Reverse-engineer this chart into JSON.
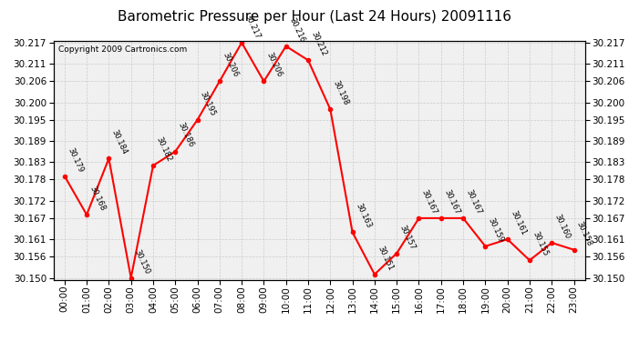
{
  "title": "Barometric Pressure per Hour (Last 24 Hours) 20091116",
  "copyright": "Copyright 2009 Cartronics.com",
  "hours": [
    "00:00",
    "01:00",
    "02:00",
    "03:00",
    "04:00",
    "05:00",
    "06:00",
    "07:00",
    "08:00",
    "09:00",
    "10:00",
    "11:00",
    "12:00",
    "13:00",
    "14:00",
    "15:00",
    "16:00",
    "17:00",
    "18:00",
    "19:00",
    "20:00",
    "21:00",
    "22:00",
    "23:00"
  ],
  "values": [
    30.179,
    30.168,
    30.184,
    30.15,
    30.182,
    30.186,
    30.195,
    30.206,
    30.217,
    30.206,
    30.216,
    30.212,
    30.198,
    30.163,
    30.151,
    30.157,
    30.167,
    30.167,
    30.167,
    30.159,
    30.161,
    30.155,
    30.16,
    30.158
  ],
  "ylim_min": 30.1495,
  "ylim_max": 30.2175,
  "yticks": [
    30.15,
    30.156,
    30.161,
    30.167,
    30.172,
    30.178,
    30.183,
    30.189,
    30.195,
    30.2,
    30.206,
    30.211,
    30.217
  ],
  "line_color": "red",
  "marker_color": "red",
  "bg_color": "#ffffff",
  "plot_bg_color": "#f0f0f0",
  "grid_color": "#cccccc",
  "title_fontsize": 11,
  "copyright_fontsize": 6.5,
  "label_fontsize": 6,
  "tick_fontsize": 7.5
}
